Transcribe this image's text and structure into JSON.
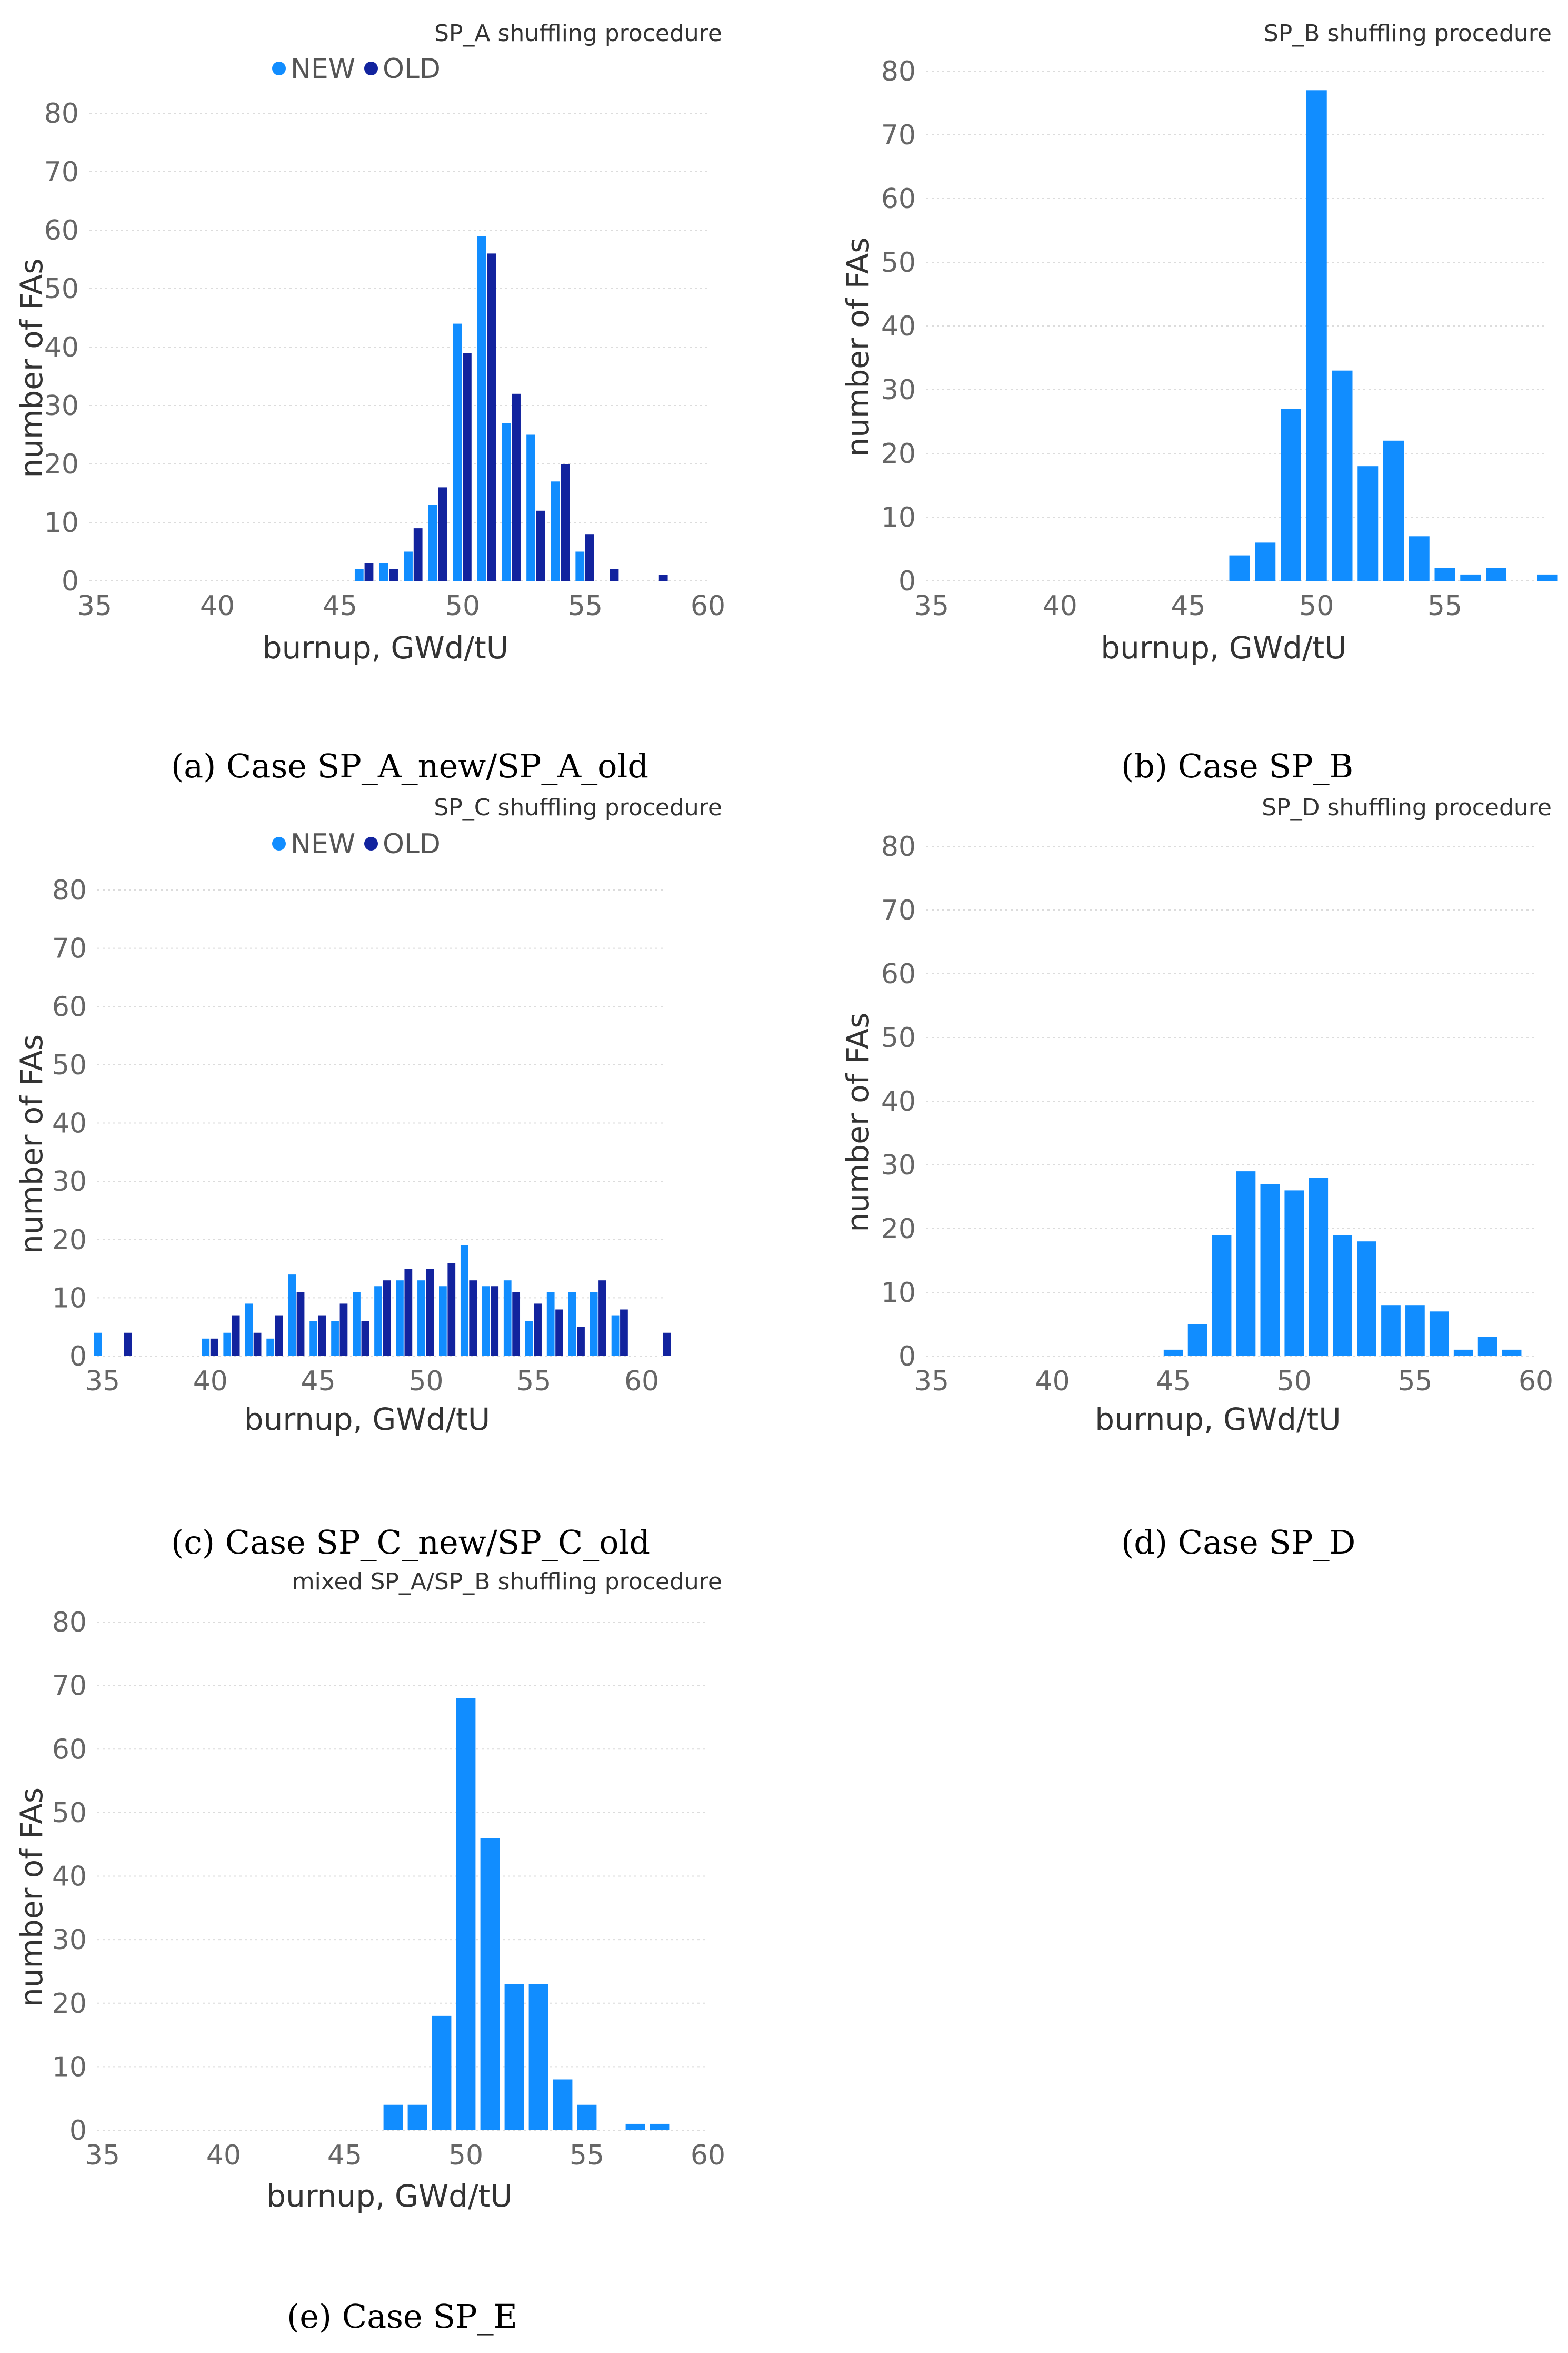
{
  "colors": {
    "new": "#118DFF",
    "old": "#12239E",
    "single": "#118DFF"
  },
  "chart_data": [
    {
      "id": "a",
      "type": "bar",
      "title": "SP_A shuffling procedure",
      "caption": "(a)   Case SP_A_new/SP_A_old",
      "xlabel": "burnup, GWd/tU",
      "ylabel": "number of FAs",
      "xlim": [
        35,
        60
      ],
      "ylim": [
        0,
        80
      ],
      "xticks": [
        35,
        40,
        45,
        50,
        55,
        60
      ],
      "yticks": [
        0,
        10,
        20,
        30,
        40,
        50,
        60,
        70,
        80
      ],
      "legend": [
        "NEW",
        "OLD"
      ],
      "x": [
        46,
        47,
        48,
        49,
        50,
        51,
        52,
        53,
        54,
        55,
        56,
        57,
        58
      ],
      "series": [
        {
          "name": "NEW",
          "values": [
            2,
            3,
            5,
            13,
            44,
            59,
            27,
            25,
            17,
            5,
            0,
            0,
            0
          ]
        },
        {
          "name": "OLD",
          "values": [
            3,
            2,
            9,
            16,
            39,
            56,
            32,
            12,
            20,
            8,
            2,
            0,
            1
          ]
        }
      ]
    },
    {
      "id": "b",
      "type": "bar",
      "title": "SP_B shuffling procedure",
      "caption": "(b)   Case SP_B",
      "xlabel": "burnup, GWd/tU",
      "ylabel": "number of FAs",
      "xlim": [
        35,
        59
      ],
      "ylim": [
        0,
        80
      ],
      "xticks": [
        35,
        40,
        45,
        50,
        55
      ],
      "yticks": [
        0,
        10,
        20,
        30,
        40,
        50,
        60,
        70,
        80
      ],
      "x": [
        47,
        48,
        49,
        50,
        51,
        52,
        53,
        54,
        55,
        56,
        57,
        58,
        59
      ],
      "series": [
        {
          "name": "count",
          "values": [
            4,
            6,
            27,
            77,
            33,
            18,
            22,
            7,
            2,
            1,
            2,
            0,
            1
          ]
        }
      ]
    },
    {
      "id": "c",
      "type": "bar",
      "title": "SP_C shuffling procedure",
      "caption": "(c)   Case SP_C_new/SP_C_old",
      "xlabel": "burnup, GWd/tU",
      "ylabel": "number of FAs",
      "xlim": [
        35,
        61
      ],
      "ylim": [
        0,
        80
      ],
      "xticks": [
        35,
        40,
        45,
        50,
        55,
        60
      ],
      "yticks": [
        0,
        10,
        20,
        30,
        40,
        50,
        60,
        70,
        80
      ],
      "legend": [
        "NEW",
        "OLD"
      ],
      "x": [
        35,
        36,
        40,
        41,
        42,
        43,
        44,
        45,
        46,
        47,
        48,
        49,
        50,
        51,
        52,
        53,
        54,
        55,
        56,
        57,
        58,
        59,
        61
      ],
      "series": [
        {
          "name": "NEW",
          "values": [
            4,
            0,
            3,
            4,
            9,
            3,
            14,
            6,
            6,
            11,
            12,
            13,
            13,
            12,
            19,
            12,
            13,
            6,
            11,
            11,
            11,
            7,
            0
          ]
        },
        {
          "name": "OLD",
          "values": [
            0,
            4,
            3,
            7,
            4,
            7,
            11,
            7,
            9,
            6,
            13,
            15,
            15,
            16,
            13,
            12,
            11,
            9,
            8,
            5,
            13,
            8,
            4
          ]
        }
      ]
    },
    {
      "id": "d",
      "type": "bar",
      "title": "SP_D shuffling procedure",
      "caption": "(d)   Case SP_D",
      "xlabel": "burnup, GWd/tU",
      "ylabel": "number of FAs",
      "xlim": [
        35,
        60
      ],
      "ylim": [
        0,
        80
      ],
      "xticks": [
        35,
        40,
        45,
        50,
        55,
        60
      ],
      "yticks": [
        0,
        10,
        20,
        30,
        40,
        50,
        60,
        70,
        80
      ],
      "x": [
        45,
        46,
        47,
        48,
        49,
        50,
        51,
        52,
        53,
        54,
        55,
        56,
        57,
        58,
        59
      ],
      "series": [
        {
          "name": "count",
          "values": [
            1,
            5,
            19,
            29,
            27,
            26,
            28,
            19,
            18,
            8,
            8,
            7,
            1,
            3,
            1
          ]
        }
      ]
    },
    {
      "id": "e",
      "type": "bar",
      "title": "mixed SP_A/SP_B shuffling procedure",
      "caption": "(e)   Case SP_E",
      "xlabel": "burnup, GWd/tU",
      "ylabel": "number of FAs",
      "xlim": [
        35,
        60
      ],
      "ylim": [
        0,
        80
      ],
      "xticks": [
        35,
        40,
        45,
        50,
        55,
        60
      ],
      "yticks": [
        0,
        10,
        20,
        30,
        40,
        50,
        60,
        70,
        80
      ],
      "x": [
        47,
        48,
        49,
        50,
        51,
        52,
        53,
        54,
        55,
        56,
        57,
        58
      ],
      "series": [
        {
          "name": "count",
          "values": [
            4,
            4,
            18,
            68,
            46,
            23,
            23,
            8,
            4,
            0,
            1,
            1
          ]
        }
      ]
    }
  ]
}
